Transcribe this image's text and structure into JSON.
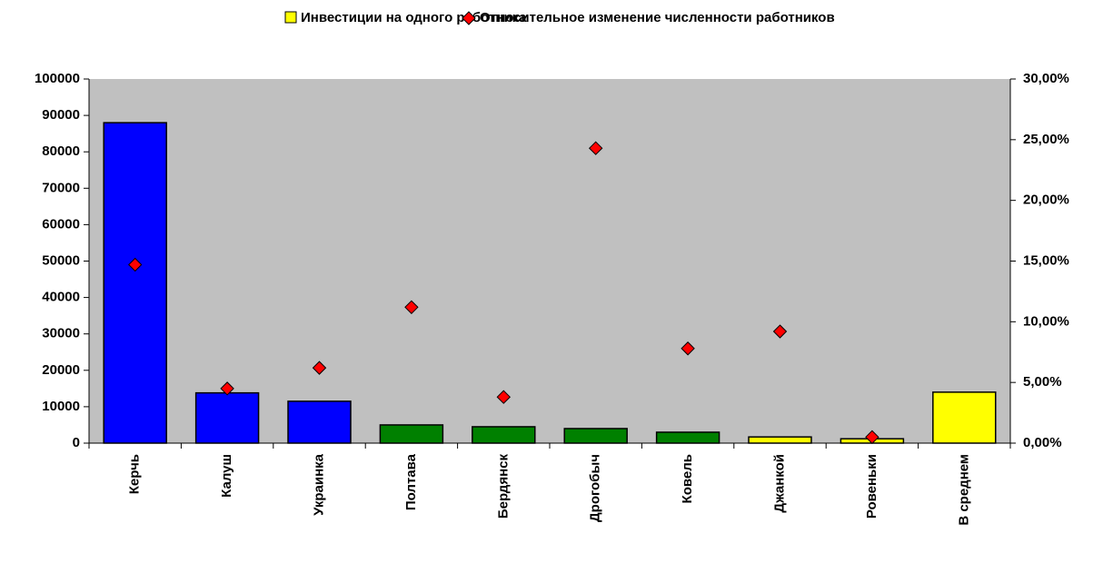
{
  "chart_data": {
    "type": "bar",
    "categories": [
      "Керчь",
      "Калуш",
      "Украинка",
      "Полтава",
      "Бердянск",
      "Дрогобыч",
      "Ковель",
      "Джанкой",
      "Ровеньки",
      "В среднем"
    ],
    "series": [
      {
        "name": "Инвестиции на одного работника",
        "type": "bar",
        "color": "#ffff00",
        "colors": [
          "#0000ff",
          "#0000ff",
          "#0000ff",
          "#008000",
          "#008000",
          "#008000",
          "#008000",
          "#ffff00",
          "#ffff00",
          "#ffff00"
        ],
        "values": [
          88000,
          13800,
          11500,
          5000,
          4500,
          4000,
          3000,
          1700,
          1200,
          14000
        ]
      },
      {
        "name": "Относительное изменение численности работников",
        "type": "scatter",
        "axis": "y2",
        "color": "#ff0000",
        "values": [
          14.7,
          4.5,
          6.2,
          11.2,
          3.8,
          24.3,
          7.8,
          9.2,
          0.5,
          null
        ]
      }
    ],
    "ylim": [
      0,
      100000
    ],
    "yticks": [
      0,
      10000,
      20000,
      30000,
      40000,
      50000,
      60000,
      70000,
      80000,
      90000,
      100000
    ],
    "y2lim": [
      0,
      30
    ],
    "y2ticks": [
      {
        "value": 0,
        "label": "0,00%"
      },
      {
        "value": 5,
        "label": "5,00%"
      },
      {
        "value": 10,
        "label": "10,00%"
      },
      {
        "value": 15,
        "label": "15,00%"
      },
      {
        "value": 20,
        "label": "20,00%"
      },
      {
        "value": 25,
        "label": "25,00%"
      },
      {
        "value": 30,
        "label": "30,00%"
      }
    ],
    "legend": "top",
    "grid": false
  }
}
